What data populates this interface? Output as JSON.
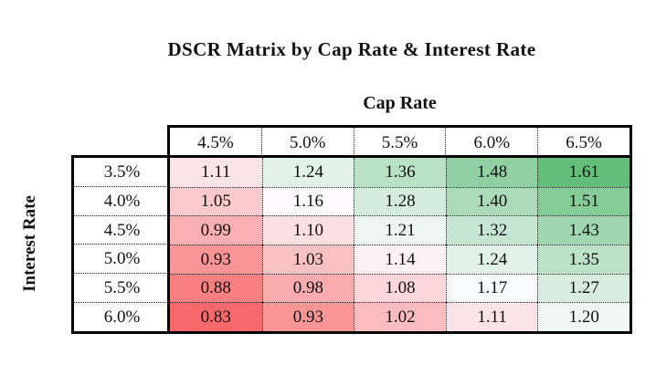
{
  "page": {
    "background_color": "#ffffff",
    "text_color": "#111111"
  },
  "chart_data": {
    "type": "heatmap",
    "title": "DSCR Matrix by Cap Rate & Interest Rate",
    "x_axis_label": "Cap Rate",
    "y_axis_label": "Interest Rate",
    "columns": [
      "4.5%",
      "5.0%",
      "5.5%",
      "6.0%",
      "6.5%"
    ],
    "rows": [
      "3.5%",
      "4.0%",
      "4.5%",
      "5.0%",
      "5.5%",
      "6.0%"
    ],
    "values": [
      [
        1.11,
        1.24,
        1.36,
        1.48,
        1.61
      ],
      [
        1.05,
        1.16,
        1.28,
        1.4,
        1.51
      ],
      [
        0.99,
        1.1,
        1.21,
        1.32,
        1.43
      ],
      [
        0.93,
        1.03,
        1.14,
        1.24,
        1.35
      ],
      [
        0.88,
        0.98,
        1.08,
        1.17,
        1.27
      ],
      [
        0.83,
        0.93,
        1.02,
        1.11,
        1.2
      ]
    ],
    "value_decimals": 2,
    "colorscale": {
      "kind": "diverging-3-color",
      "min": 0.83,
      "mid": 1.165,
      "max": 1.61,
      "min_color": "#F8696B",
      "mid_color": "#FCFCFF",
      "max_color": "#63BE7B"
    },
    "layout_hints": {
      "grid_style": "dotted",
      "outer_border_color": "#000000",
      "header_background": "#ffffff",
      "legend": "none"
    }
  }
}
